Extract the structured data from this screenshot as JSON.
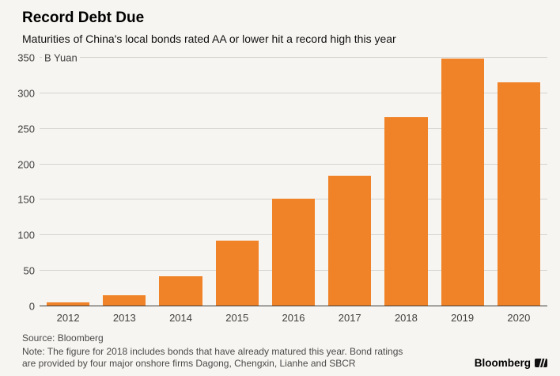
{
  "chart_data": {
    "type": "bar",
    "title": "Record Debt Due",
    "subtitle": "Maturities of China's local bonds rated AA or lower hit a record high this year",
    "categories": [
      "2012",
      "2013",
      "2014",
      "2015",
      "2016",
      "2017",
      "2018",
      "2019",
      "2020"
    ],
    "values": [
      6,
      15,
      42,
      93,
      152,
      184,
      266,
      349,
      315
    ],
    "unit_label": "B Yuan",
    "xlabel": "",
    "ylabel": "B Yuan",
    "ylim": [
      0,
      350
    ],
    "yticks": [
      0,
      50,
      100,
      150,
      200,
      250,
      300,
      350
    ],
    "grid": true,
    "legend": "none",
    "bar_color": "#f08327"
  },
  "footer": {
    "source": "Source: Bloomberg",
    "note_lines": [
      "Note: The figure for 2018 includes bonds that have already matured this year. Bond ratings",
      "are provided by four major onshore firms Dagong, Chengxin, Lianhe and SBCR"
    ],
    "brand": "Bloomberg"
  },
  "colors": {
    "background": "#f7f5f1",
    "gridline": "#d6d4cf",
    "axis_line": "#3d3d3d",
    "text": "#3f3f3f",
    "bar": "#f08327"
  }
}
